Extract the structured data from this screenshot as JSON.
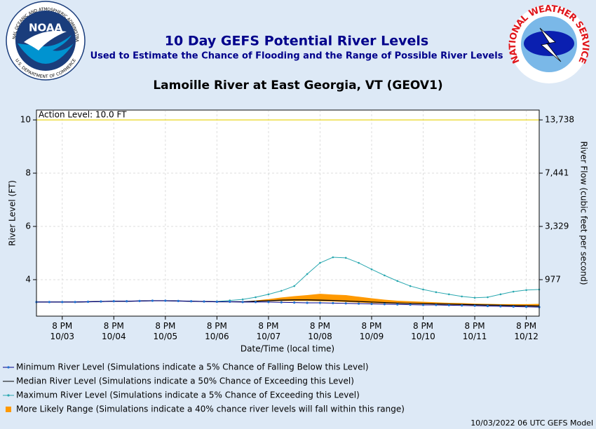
{
  "header": {
    "title": "10 Day GEFS Potential River Levels",
    "subtitle": "Used to Estimate the Chance of Flooding and the Range of Possible River Levels",
    "location": "Lamoille River at East Georgia, VT (GEOV1)",
    "noaa_logo": "NOAA",
    "noaa_ring": "NATIONAL OCEANIC AND ATMOSPHERIC ADMINISTRATION",
    "noaa_ring_bottom": "U.S. DEPARTMENT OF COMMERCE",
    "nws_logo": "NATIONAL WEATHER SERVICE"
  },
  "footer": "10/03/2022 06 UTC GEFS Model",
  "chart_data": {
    "type": "line",
    "ylabel": "River Level (FT)",
    "y2label": "River Flow (cubic feet per second)",
    "xlabel": "Date/Time (local time)",
    "ylim": [
      2.63,
      10.37
    ],
    "yticks": [
      4,
      6,
      8,
      10
    ],
    "y2ticks": [
      {
        "value": 977,
        "label": "977"
      },
      {
        "value": 3329,
        "label": "3,329"
      },
      {
        "value": 7441,
        "label": "7,441"
      },
      {
        "value": 13738,
        "label": "13,738"
      }
    ],
    "grid": true,
    "action_level": {
      "label": "Action Level: 10.0 FT",
      "value": 10,
      "color": "#e8d200"
    },
    "categories": [
      null,
      null,
      "8 PM\n10/03",
      null,
      null,
      null,
      "8 PM\n10/04",
      null,
      null,
      null,
      "8 PM\n10/05",
      null,
      null,
      null,
      "8 PM\n10/06",
      null,
      null,
      null,
      "8 PM\n10/07",
      null,
      null,
      null,
      "8 PM\n10/08",
      null,
      null,
      null,
      "8 PM\n10/09",
      null,
      null,
      null,
      "8 PM\n10/10",
      null,
      null,
      null,
      "8 PM\n10/11",
      null,
      null,
      null,
      "8 PM\n10/12",
      null
    ],
    "series": [
      {
        "name": "Minimum River Level (Simulations indicate a 5% Chance of Falling Below this Level)",
        "color": "#00008b",
        "marker_color": "#1f6fd0",
        "values": [
          3.16,
          3.16,
          3.16,
          3.16,
          3.17,
          3.18,
          3.19,
          3.19,
          3.2,
          3.21,
          3.21,
          3.2,
          3.19,
          3.18,
          3.17,
          3.17,
          3.16,
          3.16,
          3.16,
          3.15,
          3.14,
          3.13,
          3.13,
          3.12,
          3.11,
          3.1,
          3.09,
          3.08,
          3.07,
          3.06,
          3.05,
          3.05,
          3.04,
          3.03,
          3.02,
          3.01,
          3.0,
          2.99,
          2.98,
          2.97
        ]
      },
      {
        "name": "Median River Level (Simulations indicate a 50% Chance of Exceeding this Level)",
        "color": "#000000",
        "values": [
          3.16,
          3.16,
          3.16,
          3.16,
          3.17,
          3.18,
          3.19,
          3.19,
          3.2,
          3.21,
          3.21,
          3.2,
          3.19,
          3.18,
          3.17,
          3.17,
          3.17,
          3.19,
          3.21,
          3.23,
          3.24,
          3.24,
          3.23,
          3.22,
          3.2,
          3.18,
          3.16,
          3.14,
          3.12,
          3.11,
          3.1,
          3.09,
          3.08,
          3.07,
          3.06,
          3.05,
          3.04,
          3.03,
          3.02,
          3.01
        ]
      },
      {
        "name": "Maximum River Level (Simulations indicate a 5% Chance of Exceeding this Level)",
        "color": "#2aa8b0",
        "values": [
          3.16,
          3.16,
          3.16,
          3.16,
          3.17,
          3.18,
          3.19,
          3.19,
          3.2,
          3.21,
          3.21,
          3.2,
          3.19,
          3.18,
          3.18,
          3.22,
          3.26,
          3.34,
          3.45,
          3.58,
          3.76,
          4.21,
          4.63,
          4.84,
          4.82,
          4.63,
          4.39,
          4.16,
          3.95,
          3.76,
          3.63,
          3.53,
          3.45,
          3.37,
          3.32,
          3.34,
          3.45,
          3.55,
          3.61,
          3.63
        ]
      },
      {
        "name": "More Likely Range (Simulations indicate a 40% chance river levels will fall within this range)",
        "color": "#ff9900",
        "low": [
          null,
          null,
          null,
          null,
          null,
          null,
          null,
          null,
          null,
          null,
          null,
          null,
          null,
          null,
          null,
          null,
          3.17,
          3.18,
          3.19,
          3.2,
          3.2,
          3.2,
          3.19,
          3.18,
          3.16,
          3.14,
          3.12,
          3.11,
          3.1,
          3.09,
          3.08,
          3.07,
          3.06,
          3.05,
          3.04,
          3.03,
          3.02,
          3.01,
          3.0,
          2.99
        ],
        "high": [
          null,
          null,
          null,
          null,
          null,
          null,
          null,
          null,
          null,
          null,
          null,
          null,
          null,
          null,
          null,
          null,
          3.17,
          3.22,
          3.27,
          3.33,
          3.38,
          3.42,
          3.47,
          3.44,
          3.42,
          3.36,
          3.3,
          3.25,
          3.21,
          3.19,
          3.17,
          3.15,
          3.13,
          3.12,
          3.1,
          3.09,
          3.08,
          3.08,
          3.08,
          3.09
        ]
      }
    ]
  }
}
